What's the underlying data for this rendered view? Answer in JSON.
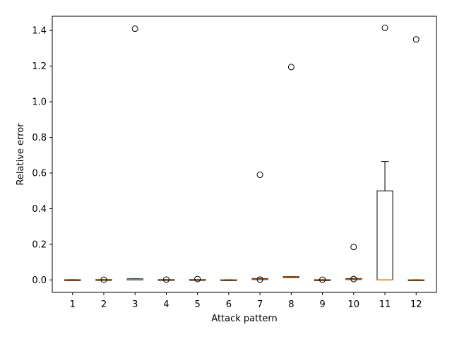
{
  "chart_data": {
    "type": "box",
    "title": "",
    "xlabel": "Attack pattern",
    "ylabel": "Relative error",
    "ylim": [
      -0.07,
      1.48
    ],
    "yticks": [
      "0.0",
      "0.2",
      "0.4",
      "0.6",
      "0.8",
      "1.0",
      "1.2",
      "1.4"
    ],
    "ytick_values": [
      0.0,
      0.2,
      0.4,
      0.6,
      0.8,
      1.0,
      1.2,
      1.4
    ],
    "grid": false,
    "colors": {
      "box": "#000000",
      "median": "#ff7f0e",
      "flier": "#000000"
    },
    "categories": [
      "1",
      "2",
      "3",
      "4",
      "5",
      "6",
      "7",
      "8",
      "9",
      "10",
      "11",
      "12"
    ],
    "boxes": [
      {
        "label": "1",
        "q1": 0.0,
        "median": 0.0,
        "q3": 0.002,
        "whislo": 0.0,
        "whishi": 0.002,
        "fliers": []
      },
      {
        "label": "2",
        "q1": 0.0,
        "median": 0.001,
        "q3": 0.003,
        "whislo": 0.0,
        "whishi": 0.003,
        "fliers": [
          0.001
        ]
      },
      {
        "label": "3",
        "q1": 0.002,
        "median": 0.003,
        "q3": 0.006,
        "whislo": 0.002,
        "whishi": 0.006,
        "fliers": [
          1.41
        ]
      },
      {
        "label": "4",
        "q1": 0.0,
        "median": 0.001,
        "q3": 0.003,
        "whislo": 0.0,
        "whishi": 0.003,
        "fliers": [
          0.002
        ]
      },
      {
        "label": "5",
        "q1": 0.0,
        "median": 0.001,
        "q3": 0.003,
        "whislo": 0.0,
        "whishi": 0.003,
        "fliers": [
          0.005
        ]
      },
      {
        "label": "6",
        "q1": 0.0,
        "median": 0.001,
        "q3": 0.002,
        "whislo": 0.0,
        "whishi": 0.002,
        "fliers": []
      },
      {
        "label": "7",
        "q1": 0.003,
        "median": 0.005,
        "q3": 0.008,
        "whislo": 0.003,
        "whishi": 0.008,
        "fliers": [
          0.59,
          0.002
        ]
      },
      {
        "label": "8",
        "q1": 0.015,
        "median": 0.017,
        "q3": 0.019,
        "whislo": 0.015,
        "whishi": 0.019,
        "fliers": [
          1.195
        ]
      },
      {
        "label": "9",
        "q1": 0.0,
        "median": 0.0,
        "q3": 0.002,
        "whislo": 0.0,
        "whishi": 0.002,
        "fliers": [
          0.001
        ]
      },
      {
        "label": "10",
        "q1": 0.003,
        "median": 0.005,
        "q3": 0.008,
        "whislo": 0.003,
        "whishi": 0.008,
        "fliers": [
          0.185,
          0.005
        ]
      },
      {
        "label": "11",
        "q1": 0.0,
        "median": 0.001,
        "q3": 0.5,
        "whislo": 0.0,
        "whishi": 0.665,
        "fliers": [
          1.415
        ]
      },
      {
        "label": "12",
        "q1": 0.0,
        "median": 0.001,
        "q3": 0.002,
        "whislo": 0.0,
        "whishi": 0.002,
        "fliers": [
          1.35
        ]
      }
    ]
  }
}
